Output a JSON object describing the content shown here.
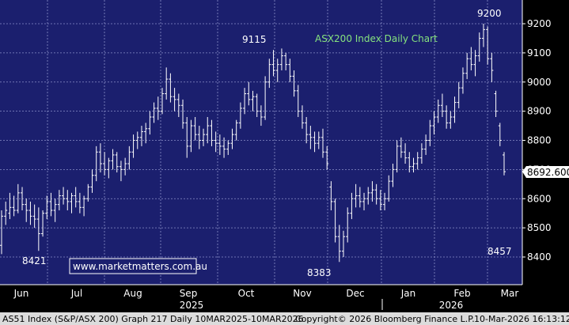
{
  "chart_data": {
    "type": "ohlc",
    "title": "ASX200 Index Daily Chart",
    "watermark": "www.marketmatters.com.au",
    "last_price_label": "8692.600",
    "ylim": [
      8350,
      9250
    ],
    "y_ticks": [
      8400,
      8500,
      8600,
      8700,
      8800,
      8900,
      9000,
      9100,
      9200
    ],
    "months": [
      "Jun",
      "Jul",
      "Aug",
      "Sep",
      "Oct",
      "Nov",
      "Dec",
      "Jan",
      "Feb",
      "Mar"
    ],
    "years": [
      "2025",
      "2026"
    ],
    "annotations": [
      "8421",
      "9115",
      "8383",
      "9200",
      "8457"
    ],
    "footer_left": "AS51 Index (S&P/ASX 200) Graph 217 Daily 10MAR2025-10MAR2026",
    "footer_center": "Copyright© 2026 Bloomberg Finance L.P.",
    "footer_right": "10-Mar-2026 16:13:12",
    "colors": {
      "background": "#000000",
      "plot_area": "#1b1f6e",
      "grid": "#8a8fc8",
      "bars": "#ffffff",
      "title": "#86e37e",
      "footer_bg": "#dcdcdc"
    },
    "series": [
      {
        "values": [
          [
            8440,
            8560,
            8410,
            8540
          ],
          [
            8540,
            8590,
            8510,
            8560
          ],
          [
            8550,
            8620,
            8530,
            8570
          ],
          [
            8570,
            8610,
            8540,
            8560
          ],
          [
            8560,
            8650,
            8550,
            8620
          ],
          [
            8620,
            8640,
            8560,
            8580
          ],
          [
            8580,
            8600,
            8520,
            8560
          ],
          [
            8560,
            8590,
            8510,
            8540
          ],
          [
            8540,
            8580,
            8500,
            8530
          ],
          [
            8530,
            8570,
            8421,
            8480
          ],
          [
            8480,
            8560,
            8470,
            8550
          ],
          [
            8550,
            8610,
            8530,
            8590
          ],
          [
            8590,
            8620,
            8540,
            8560
          ],
          [
            8560,
            8600,
            8520,
            8580
          ],
          [
            8580,
            8630,
            8560,
            8610
          ],
          [
            8610,
            8640,
            8580,
            8600
          ],
          [
            8600,
            8630,
            8560,
            8590
          ],
          [
            8590,
            8620,
            8550,
            8610
          ],
          [
            8610,
            8640,
            8570,
            8590
          ],
          [
            8590,
            8620,
            8550,
            8570
          ],
          [
            8570,
            8610,
            8540,
            8600
          ],
          [
            8600,
            8650,
            8590,
            8640
          ],
          [
            8640,
            8700,
            8620,
            8680
          ],
          [
            8680,
            8780,
            8660,
            8760
          ],
          [
            8760,
            8790,
            8690,
            8720
          ],
          [
            8720,
            8760,
            8680,
            8700
          ],
          [
            8700,
            8740,
            8670,
            8730
          ],
          [
            8730,
            8770,
            8700,
            8750
          ],
          [
            8750,
            8760,
            8690,
            8710
          ],
          [
            8710,
            8730,
            8660,
            8700
          ],
          [
            8700,
            8740,
            8680,
            8720
          ],
          [
            8720,
            8780,
            8700,
            8760
          ],
          [
            8760,
            8820,
            8740,
            8800
          ],
          [
            8800,
            8830,
            8770,
            8810
          ],
          [
            8810,
            8850,
            8780,
            8830
          ],
          [
            8830,
            8860,
            8790,
            8840
          ],
          [
            8840,
            8900,
            8820,
            8880
          ],
          [
            8880,
            8930,
            8860,
            8910
          ],
          [
            8910,
            8950,
            8870,
            8900
          ],
          [
            8900,
            8980,
            8890,
            8960
          ],
          [
            8960,
            9050,
            8940,
            9010
          ],
          [
            9010,
            9030,
            8930,
            8950
          ],
          [
            8950,
            8980,
            8900,
            8940
          ],
          [
            8940,
            8960,
            8880,
            8920
          ],
          [
            8920,
            8940,
            8840,
            8860
          ],
          [
            8860,
            8880,
            8740,
            8780
          ],
          [
            8780,
            8870,
            8760,
            8850
          ],
          [
            8850,
            8880,
            8800,
            8820
          ],
          [
            8820,
            8850,
            8770,
            8800
          ],
          [
            8800,
            8840,
            8780,
            8820
          ],
          [
            8820,
            8880,
            8790,
            8850
          ],
          [
            8850,
            8870,
            8780,
            8800
          ],
          [
            8800,
            8830,
            8760,
            8790
          ],
          [
            8790,
            8820,
            8750,
            8780
          ],
          [
            8780,
            8810,
            8740,
            8770
          ],
          [
            8770,
            8800,
            8750,
            8790
          ],
          [
            8790,
            8840,
            8770,
            8820
          ],
          [
            8820,
            8870,
            8800,
            8860
          ],
          [
            8860,
            8930,
            8840,
            8910
          ],
          [
            8910,
            8980,
            8890,
            8960
          ],
          [
            8960,
            9000,
            8920,
            8940
          ],
          [
            8940,
            8970,
            8900,
            8950
          ],
          [
            8950,
            8960,
            8880,
            8900
          ],
          [
            8900,
            8920,
            8850,
            8880
          ],
          [
            8880,
            9020,
            8870,
            9000
          ],
          [
            9000,
            9080,
            8980,
            9060
          ],
          [
            9060,
            9110,
            9020,
            9040
          ],
          [
            9040,
            9080,
            9000,
            9060
          ],
          [
            9060,
            9115,
            9040,
            9090
          ],
          [
            9090,
            9100,
            9040,
            9060
          ],
          [
            9060,
            9080,
            9000,
            9020
          ],
          [
            9020,
            9040,
            8950,
            8970
          ],
          [
            8970,
            8990,
            8880,
            8900
          ],
          [
            8900,
            8920,
            8840,
            8860
          ],
          [
            8860,
            8880,
            8790,
            8820
          ],
          [
            8820,
            8850,
            8770,
            8810
          ],
          [
            8810,
            8830,
            8760,
            8790
          ],
          [
            8790,
            8830,
            8770,
            8810
          ],
          [
            8810,
            8840,
            8740,
            8760
          ],
          [
            8760,
            8780,
            8700,
            8720
          ],
          [
            8640,
            8660,
            8560,
            8590
          ],
          [
            8590,
            8600,
            8450,
            8470
          ],
          [
            8470,
            8510,
            8383,
            8420
          ],
          [
            8420,
            8490,
            8400,
            8470
          ],
          [
            8470,
            8570,
            8450,
            8550
          ],
          [
            8550,
            8620,
            8530,
            8600
          ],
          [
            8600,
            8650,
            8570,
            8610
          ],
          [
            8610,
            8640,
            8570,
            8590
          ],
          [
            8590,
            8620,
            8560,
            8600
          ],
          [
            8600,
            8640,
            8580,
            8620
          ],
          [
            8620,
            8660,
            8590,
            8630
          ],
          [
            8630,
            8650,
            8580,
            8600
          ],
          [
            8600,
            8630,
            8560,
            8580
          ],
          [
            8580,
            8620,
            8560,
            8600
          ],
          [
            8600,
            8680,
            8590,
            8660
          ],
          [
            8660,
            8720,
            8640,
            8700
          ],
          [
            8700,
            8800,
            8690,
            8780
          ],
          [
            8780,
            8810,
            8740,
            8760
          ],
          [
            8760,
            8790,
            8720,
            8740
          ],
          [
            8740,
            8760,
            8690,
            8710
          ],
          [
            8710,
            8740,
            8690,
            8720
          ],
          [
            8720,
            8760,
            8700,
            8740
          ],
          [
            8740,
            8790,
            8720,
            8770
          ],
          [
            8770,
            8820,
            8750,
            8800
          ],
          [
            8800,
            8870,
            8780,
            8850
          ],
          [
            8850,
            8900,
            8820,
            8880
          ],
          [
            8880,
            8940,
            8860,
            8920
          ],
          [
            8920,
            8960,
            8880,
            8900
          ],
          [
            8900,
            8920,
            8840,
            8860
          ],
          [
            8860,
            8900,
            8840,
            8880
          ],
          [
            8880,
            8950,
            8860,
            8930
          ],
          [
            8930,
            9000,
            8910,
            8980
          ],
          [
            8980,
            9050,
            8960,
            9030
          ],
          [
            9030,
            9100,
            9010,
            9080
          ],
          [
            9080,
            9120,
            9040,
            9060
          ],
          [
            9060,
            9110,
            9020,
            9090
          ],
          [
            9090,
            9170,
            9070,
            9150
          ],
          [
            9150,
            9200,
            9120,
            9180
          ],
          [
            9180,
            9190,
            9060,
            9080
          ],
          [
            9080,
            9100,
            9000,
            9040
          ],
          [
            8960,
            8970,
            8880,
            8900
          ],
          [
            8850,
            8860,
            8780,
            8800
          ],
          [
            8750,
            8760,
            8680,
            8692.6
          ]
        ]
      }
    ]
  }
}
